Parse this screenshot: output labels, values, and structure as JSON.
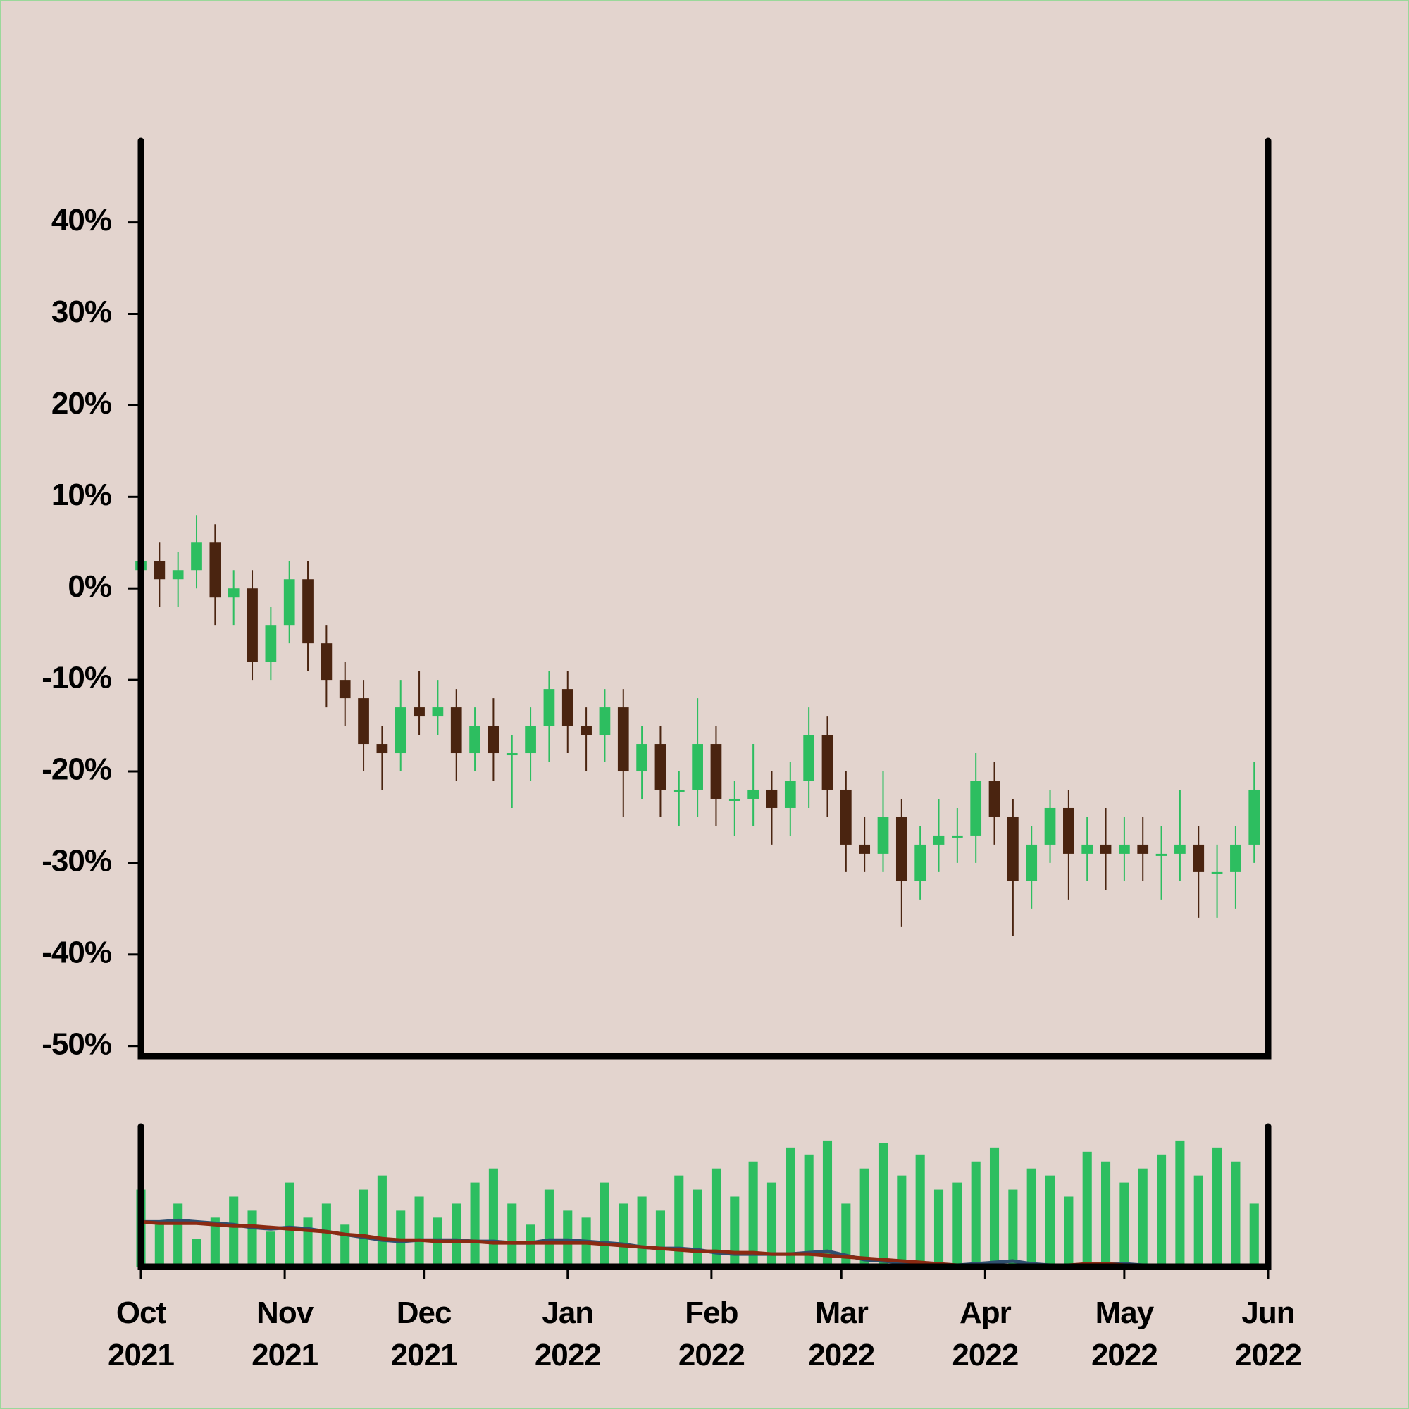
{
  "chart_data": {
    "type": "candlestick",
    "x": [
      "2021-10-01",
      "2021-10-05",
      "2021-10-09",
      "2021-10-13",
      "2021-10-17",
      "2021-10-21",
      "2021-10-25",
      "2021-10-29",
      "2021-11-02",
      "2021-11-06",
      "2021-11-10",
      "2021-11-14",
      "2021-11-18",
      "2021-11-22",
      "2021-11-26",
      "2021-11-30",
      "2021-12-04",
      "2021-12-08",
      "2021-12-12",
      "2021-12-16",
      "2021-12-20",
      "2021-12-24",
      "2021-12-28",
      "2022-01-01",
      "2022-01-05",
      "2022-01-09",
      "2022-01-13",
      "2022-01-17",
      "2022-01-21",
      "2022-01-25",
      "2022-01-29",
      "2022-02-02",
      "2022-02-06",
      "2022-02-10",
      "2022-02-14",
      "2022-02-18",
      "2022-02-22",
      "2022-02-26",
      "2022-03-02",
      "2022-03-06",
      "2022-03-10",
      "2022-03-14",
      "2022-03-18",
      "2022-03-22",
      "2022-03-26",
      "2022-03-30",
      "2022-04-03",
      "2022-04-07",
      "2022-04-11",
      "2022-04-15",
      "2022-04-19",
      "2022-04-23",
      "2022-04-27",
      "2022-05-01",
      "2022-05-05",
      "2022-05-09",
      "2022-05-13",
      "2022-05-17",
      "2022-05-21",
      "2022-05-25",
      "2022-05-29"
    ],
    "open": [
      2,
      3,
      1,
      2,
      5,
      -1,
      0,
      -8,
      -4,
      1,
      -6,
      -10,
      -12,
      -17,
      -18,
      -13,
      -14,
      -13,
      -18,
      -15,
      -18,
      -18,
      -15,
      -11,
      -15,
      -16,
      -13,
      -20,
      -17,
      -22,
      -22,
      -17,
      -23,
      -23,
      -22,
      -24,
      -21,
      -16,
      -22,
      -28,
      -29,
      -25,
      -32,
      -28,
      -27,
      -27,
      -21,
      -25,
      -32,
      -28,
      -24,
      -29,
      -28,
      -29,
      -28,
      -29,
      -29,
      -28,
      -31,
      -31,
      -28
    ],
    "high": [
      6,
      5,
      4,
      8,
      7,
      2,
      2,
      -2,
      3,
      3,
      -4,
      -8,
      -10,
      -15,
      -10,
      -9,
      -10,
      -11,
      -13,
      -12,
      -16,
      -13,
      -9,
      -9,
      -13,
      -11,
      -11,
      -15,
      -15,
      -20,
      -12,
      -15,
      -21,
      -17,
      -20,
      -19,
      -13,
      -14,
      -20,
      -25,
      -20,
      -23,
      -26,
      -23,
      -24,
      -18,
      -19,
      -23,
      -26,
      -22,
      -22,
      -25,
      -24,
      -25,
      -25,
      -26,
      -22,
      -26,
      -28,
      -26,
      -19
    ],
    "low": [
      -1,
      -2,
      -2,
      0,
      -4,
      -4,
      -10,
      -10,
      -6,
      -9,
      -13,
      -15,
      -20,
      -22,
      -20,
      -16,
      -16,
      -21,
      -20,
      -21,
      -24,
      -21,
      -19,
      -18,
      -20,
      -19,
      -25,
      -23,
      -25,
      -26,
      -25,
      -26,
      -27,
      -26,
      -28,
      -27,
      -24,
      -25,
      -31,
      -31,
      -31,
      -37,
      -34,
      -31,
      -30,
      -30,
      -28,
      -38,
      -35,
      -30,
      -34,
      -32,
      -33,
      -32,
      -32,
      -34,
      -32,
      -36,
      -36,
      -35,
      -30
    ],
    "close": [
      3,
      1,
      2,
      5,
      -1,
      0,
      -8,
      -4,
      1,
      -6,
      -10,
      -12,
      -17,
      -18,
      -13,
      -14,
      -13,
      -18,
      -15,
      -18,
      -18,
      -15,
      -11,
      -15,
      -16,
      -13,
      -20,
      -17,
      -22,
      -22,
      -17,
      -23,
      -23,
      -22,
      -24,
      -21,
      -16,
      -22,
      -28,
      -29,
      -25,
      -32,
      -28,
      -27,
      -27,
      -21,
      -25,
      -32,
      -28,
      -24,
      -29,
      -28,
      -29,
      -28,
      -29,
      -29,
      -28,
      -31,
      -31,
      -28,
      -22
    ],
    "up_color": "#2dbe60",
    "down_color": "#4a2410",
    "volume": [
      55,
      30,
      45,
      20,
      35,
      50,
      40,
      25,
      60,
      35,
      45,
      30,
      55,
      65,
      40,
      50,
      35,
      45,
      60,
      70,
      45,
      30,
      55,
      40,
      35,
      60,
      45,
      50,
      40,
      65,
      55,
      70,
      50,
      75,
      60,
      85,
      80,
      90,
      45,
      70,
      88,
      65,
      80,
      55,
      60,
      75,
      85,
      55,
      70,
      65,
      50,
      82,
      75,
      60,
      70,
      80,
      90,
      65,
      85,
      75,
      45
    ],
    "volume_color": "#2dbe60",
    "volume_ylim": [
      0,
      100
    ],
    "series": [
      {
        "color": "#2f4f6f",
        "values": [
          32,
          32,
          33,
          32,
          31,
          30,
          28,
          27,
          28,
          27,
          25,
          23,
          21,
          19,
          18,
          19,
          19,
          19,
          18,
          18,
          17,
          17,
          19,
          19,
          18,
          17,
          16,
          14,
          13,
          13,
          12,
          10,
          9,
          9,
          9,
          9,
          10,
          11,
          8,
          5,
          4,
          3,
          2,
          1,
          1,
          2,
          3,
          4,
          2,
          1,
          1,
          1,
          2,
          2,
          1,
          1,
          1,
          1,
          1,
          1,
          1
        ]
      },
      {
        "color": "#8b2a12",
        "values": [
          32,
          31,
          31,
          31,
          30,
          29,
          29,
          28,
          27,
          26,
          25,
          23,
          22,
          20,
          19,
          19,
          18,
          18,
          18,
          17,
          17,
          17,
          17,
          17,
          17,
          16,
          15,
          14,
          13,
          12,
          11,
          11,
          10,
          10,
          9,
          9,
          9,
          8,
          7,
          6,
          5,
          4,
          3,
          2,
          1,
          1,
          1,
          1,
          1,
          1,
          1,
          2,
          2,
          1,
          1,
          1,
          1,
          1,
          1,
          1,
          1
        ]
      }
    ],
    "xlim": [
      "2021-10-01",
      "2022-06-01"
    ],
    "xticks": [
      {
        "value": "2021-10-01",
        "label": "Oct 2021"
      },
      {
        "value": "2021-11-01",
        "label": "Nov 2021"
      },
      {
        "value": "2021-12-01",
        "label": "Dec 2021"
      },
      {
        "value": "2022-01-01",
        "label": "Jan 2022"
      },
      {
        "value": "2022-02-01",
        "label": "Feb 2022"
      },
      {
        "value": "2022-03-01",
        "label": "Mar 2022"
      },
      {
        "value": "2022-04-01",
        "label": "Apr 2022"
      },
      {
        "value": "2022-05-01",
        "label": "May 2022"
      },
      {
        "value": "2022-06-01",
        "label": "Jun 2022"
      }
    ],
    "ylim": [
      -51.1,
      48.9
    ],
    "yticks": [
      {
        "value": 40,
        "label": "40%"
      },
      {
        "value": 30,
        "label": "30%"
      },
      {
        "value": 20,
        "label": "20%"
      },
      {
        "value": 10,
        "label": "10%"
      },
      {
        "value": 0,
        "label": "0%"
      },
      {
        "value": -10,
        "label": "-10%"
      },
      {
        "value": -20,
        "label": "-20%"
      },
      {
        "value": -30,
        "label": "-30%"
      },
      {
        "value": -40,
        "label": "-40%"
      },
      {
        "value": -50,
        "label": "-50%"
      }
    ]
  }
}
